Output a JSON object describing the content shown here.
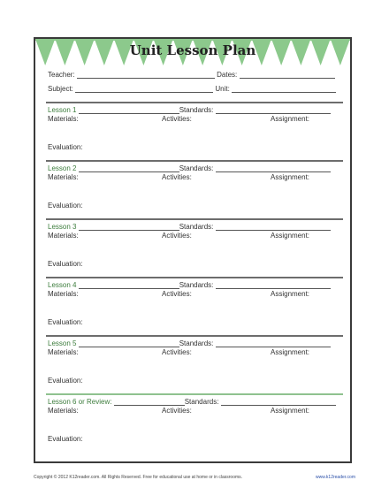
{
  "title": "Unit Lesson Plan",
  "header": {
    "teacher_label": "Teacher:",
    "dates_label": "Dates:",
    "subject_label": "Subject:",
    "unit_label": "Unit:"
  },
  "lesson_fields": {
    "standards_label": "Standards:",
    "materials_label": "Materials:",
    "activities_label": "Activities:",
    "assignment_label": "Assignment:",
    "evaluation_label": "Evaluation:"
  },
  "lessons": [
    {
      "name": "Lesson 1"
    },
    {
      "name": "Lesson 2"
    },
    {
      "name": "Lesson 3"
    },
    {
      "name": "Lesson 4"
    },
    {
      "name": "Lesson 5"
    },
    {
      "name": "Lesson 6 or Review:"
    }
  ],
  "footer": {
    "copyright": "Copyright © 2012  K12reader.com. All Rights Reserved. Free for educational use at home or in classrooms.",
    "url": "www.k12reader.com"
  },
  "colors": {
    "banner_green": "#8cc98c",
    "lesson_label_green": "#3d7d3d",
    "frame_border": "#3a3a3a"
  }
}
